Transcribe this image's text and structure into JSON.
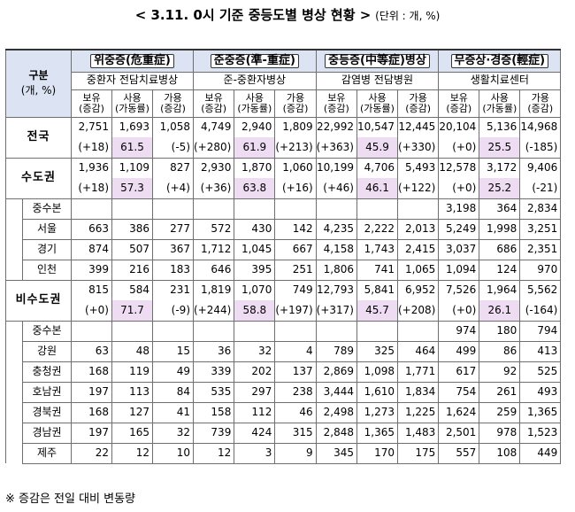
{
  "title": {
    "text": "< 3.11. 0시 기준 중등도별 병상 현황 >",
    "unit": "(단위 : 개, %)"
  },
  "header": {
    "gubun": "구분",
    "gubun_unit": "(개, %)",
    "categories": [
      {
        "name": "위중증(危重症)",
        "facility": "중환자 전담치료병상"
      },
      {
        "name": "준중증(準-重症)",
        "facility": "준-중환자병상"
      },
      {
        "name": "중등증(中等症)병상",
        "facility": "감염병 전담병원"
      },
      {
        "name": "무증상·경증(輕症)",
        "facility": "생활치료센터"
      }
    ],
    "cols": [
      {
        "top": "보유",
        "bot": "(증감)"
      },
      {
        "top": "사용",
        "bot": "(가동률)"
      },
      {
        "top": "가용",
        "bot": "(증감)"
      }
    ]
  },
  "rows": {
    "national": {
      "label": "전국",
      "top": [
        "2,751",
        "1,693",
        "1,058",
        "4,749",
        "2,940",
        "1,809",
        "22,992",
        "10,547",
        "12,445",
        "20,104",
        "5,136",
        "14,968"
      ],
      "bot": [
        "(+18)",
        "61.5",
        "(-5)",
        "(+280)",
        "61.9",
        "(+213)",
        "(+363)",
        "45.9",
        "(+330)",
        "(+0)",
        "25.5",
        "(-185)"
      ]
    },
    "capital": {
      "label": "수도권",
      "top": [
        "1,936",
        "1,109",
        "827",
        "2,930",
        "1,870",
        "1,060",
        "10,199",
        "4,706",
        "5,493",
        "12,578",
        "3,172",
        "9,406"
      ],
      "bot": [
        "(+18)",
        "57.3",
        "(+4)",
        "(+36)",
        "63.8",
        "(+16)",
        "(+46)",
        "46.1",
        "(+122)",
        "(+0)",
        "25.2",
        "(-21)"
      ]
    },
    "capital_sub": [
      {
        "label": "중수본",
        "vals": [
          "",
          "",
          "",
          "",
          "",
          "",
          "",
          "",
          "",
          "3,198",
          "364",
          "2,834"
        ]
      },
      {
        "label": "서울",
        "vals": [
          "663",
          "386",
          "277",
          "572",
          "430",
          "142",
          "4,235",
          "2,222",
          "2,013",
          "5,249",
          "1,998",
          "3,251"
        ]
      },
      {
        "label": "경기",
        "vals": [
          "874",
          "507",
          "367",
          "1,712",
          "1,045",
          "667",
          "4,158",
          "1,743",
          "2,415",
          "3,037",
          "686",
          "2,351"
        ]
      },
      {
        "label": "인천",
        "vals": [
          "399",
          "216",
          "183",
          "646",
          "395",
          "251",
          "1,806",
          "741",
          "1,065",
          "1,094",
          "124",
          "970"
        ]
      }
    ],
    "noncapital": {
      "label": "비수도권",
      "top": [
        "815",
        "584",
        "231",
        "1,819",
        "1,070",
        "749",
        "12,793",
        "5,841",
        "6,952",
        "7,526",
        "1,964",
        "5,562"
      ],
      "bot": [
        "(+0)",
        "71.7",
        "(-9)",
        "(+244)",
        "58.8",
        "(+197)",
        "(+317)",
        "45.7",
        "(+208)",
        "(+0)",
        "26.1",
        "(-164)"
      ]
    },
    "noncapital_sub": [
      {
        "label": "중수본",
        "vals": [
          "",
          "",
          "",
          "",
          "",
          "",
          "",
          "",
          "",
          "974",
          "180",
          "794"
        ]
      },
      {
        "label": "강원",
        "vals": [
          "63",
          "48",
          "15",
          "36",
          "32",
          "4",
          "789",
          "325",
          "464",
          "499",
          "86",
          "413"
        ]
      },
      {
        "label": "충청권",
        "vals": [
          "168",
          "119",
          "49",
          "339",
          "202",
          "137",
          "2,869",
          "1,098",
          "1,771",
          "617",
          "92",
          "525"
        ]
      },
      {
        "label": "호남권",
        "vals": [
          "197",
          "113",
          "84",
          "535",
          "297",
          "238",
          "3,444",
          "1,610",
          "1,834",
          "754",
          "261",
          "493"
        ]
      },
      {
        "label": "경북권",
        "vals": [
          "168",
          "127",
          "41",
          "158",
          "112",
          "46",
          "2,498",
          "1,273",
          "1,225",
          "1,624",
          "259",
          "1,365"
        ]
      },
      {
        "label": "경남권",
        "vals": [
          "197",
          "165",
          "32",
          "739",
          "424",
          "315",
          "2,848",
          "1,365",
          "1,483",
          "2,501",
          "978",
          "1,523"
        ]
      },
      {
        "label": "제주",
        "vals": [
          "22",
          "12",
          "10",
          "12",
          "3",
          "9",
          "345",
          "170",
          "175",
          "557",
          "108",
          "449"
        ]
      }
    ]
  },
  "note": "※ 증감은 전일 대비 변동량"
}
